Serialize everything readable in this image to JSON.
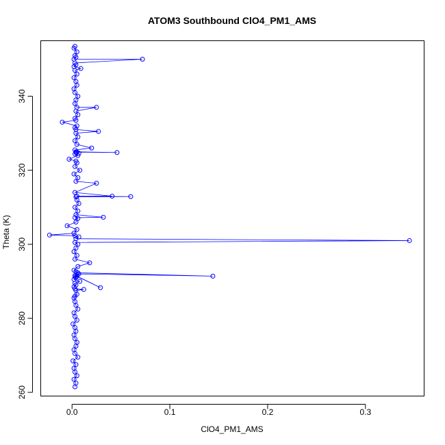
{
  "chart_data": {
    "type": "scatter",
    "title": "ATOM3 Southbound ClO4_PM1_AMS",
    "xlabel": "ClO4_PM1_AMS",
    "ylabel": "Theta (K)",
    "xlim": [
      -0.032,
      0.36
    ],
    "ylim": [
      259,
      355
    ],
    "xticks": [
      0.0,
      0.1,
      0.2,
      0.3
    ],
    "xtick_labels": [
      "0.0",
      "0.1",
      "0.2",
      "0.3"
    ],
    "yticks": [
      260,
      280,
      300,
      320,
      340
    ],
    "ytick_labels": [
      "260",
      "280",
      "300",
      "320",
      "340"
    ],
    "grid": false,
    "legend": "none",
    "colors": {
      "series": "#0000ff",
      "axes": "#000000"
    },
    "series": [
      {
        "x": [
          0.003,
          0.004,
          0.002,
          0.005,
          0.003,
          0.002,
          0.004,
          0.001,
          0.006,
          0.003,
          0.002,
          0.004,
          0.005,
          0.003,
          0.002,
          0.004,
          0.003,
          0.001,
          0.005,
          0.003,
          0.002,
          0.006,
          0.004,
          0.003,
          0.002,
          0.003,
          0.005,
          0.004,
          0.012,
          0.003,
          0.002,
          0.004,
          0.003,
          0.008,
          0.002,
          0.004,
          0.003,
          0.005,
          0.029,
          0.003,
          0.005,
          0.007,
          0.144,
          0.006,
          0.004,
          0.002,
          0.006,
          0.018,
          0.003,
          0.005,
          0.002,
          0.004,
          0.006,
          0.003,
          0.345,
          0.004,
          0.007,
          0.003,
          -0.023,
          0.002,
          0.005,
          -0.005,
          0.004,
          0.006,
          0.003,
          0.032,
          0.004,
          0.006,
          0.003,
          0.007,
          0.005,
          0.004,
          0.06,
          0.005,
          0.041,
          0.003,
          0.025,
          0.004,
          0.006,
          0.002,
          0.008,
          0.003,
          0.005,
          0.004,
          -0.003,
          0.006,
          0.003,
          0.007,
          0.004,
          0.005,
          0.046,
          0.004,
          0.003,
          0.02,
          0.005,
          0.003,
          0.006,
          0.004,
          0.027,
          0.004,
          0.003,
          0.005,
          -0.01,
          0.004,
          0.003,
          0.006,
          0.004,
          0.025,
          0.005,
          0.003,
          0.004,
          0.006,
          0.003,
          0.002,
          0.005,
          0.004,
          0.002,
          0.005,
          0.003,
          0.009,
          0.002,
          0.004,
          0.003,
          0.072,
          0.002,
          0.004,
          0.003,
          0.005,
          0.002,
          0.003
        ],
        "y": [
          261.5,
          262.5,
          263.5,
          264.5,
          265.5,
          266.5,
          267.5,
          268.5,
          269.5,
          270.5,
          271.5,
          272.5,
          273.5,
          274.5,
          275.5,
          276.5,
          277.5,
          278.5,
          279.5,
          280.5,
          281.5,
          282.5,
          283.5,
          284.5,
          285.5,
          286.0,
          286.5,
          287.5,
          287.8,
          288.0,
          288.5,
          289.0,
          289.5,
          290.0,
          290.5,
          291.0,
          291.2,
          291.4,
          288.3,
          291.6,
          291.8,
          292.0,
          291.4,
          292.3,
          292.6,
          293.0,
          294.0,
          295.0,
          296.0,
          297.0,
          298.0,
          299.0,
          300.0,
          300.5,
          301.0,
          301.5,
          302.0,
          302.3,
          302.5,
          303.0,
          304.0,
          305.0,
          306.0,
          307.0,
          307.2,
          307.3,
          308.0,
          309.0,
          310.0,
          311.0,
          312.0,
          312.8,
          312.9,
          313.0,
          313.0,
          314.0,
          316.5,
          317.0,
          318.0,
          319.0,
          320.0,
          321.0,
          322.0,
          322.5,
          323.0,
          324.0,
          324.4,
          324.6,
          324.8,
          324.9,
          324.8,
          325.0,
          325.5,
          326.0,
          327.0,
          328.0,
          329.0,
          330.0,
          330.5,
          331.0,
          331.5,
          332.0,
          333.0,
          333.5,
          334.0,
          335.0,
          336.0,
          337.0,
          337.0,
          338.0,
          339.0,
          340.0,
          341.0,
          342.0,
          343.0,
          344.0,
          345.0,
          346.0,
          347.0,
          347.5,
          348.0,
          348.5,
          349.0,
          350.0,
          350.0,
          350.5,
          351.0,
          352.0,
          353.0,
          353.5
        ]
      }
    ]
  }
}
